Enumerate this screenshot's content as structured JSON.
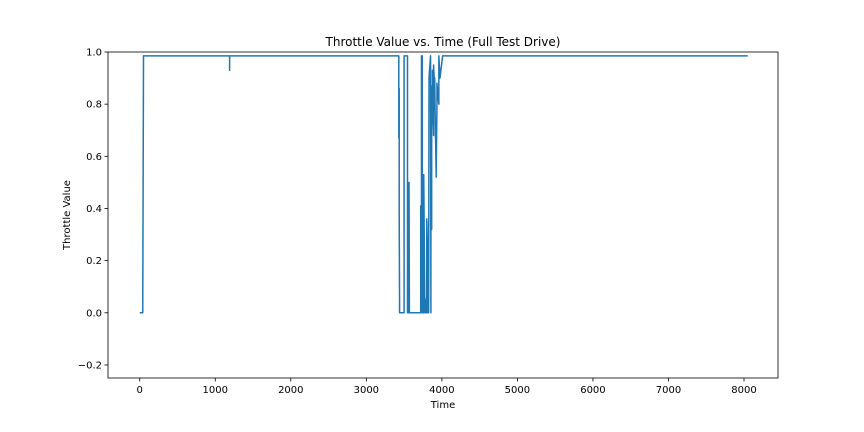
{
  "chart_data": {
    "type": "line",
    "title": "Throttle Value vs. Time (Full Test Drive)",
    "xlabel": "Time",
    "ylabel": "Throttle Value",
    "xlim": [
      -420,
      8450
    ],
    "ylim": [
      -0.25,
      1.0
    ],
    "xticks": [
      0,
      1000,
      2000,
      3000,
      4000,
      5000,
      6000,
      7000,
      8000
    ],
    "xtick_labels": [
      "0",
      "1000",
      "2000",
      "3000",
      "4000",
      "5000",
      "6000",
      "7000",
      "8000"
    ],
    "yticks": [
      -0.2,
      0.0,
      0.2,
      0.4,
      0.6,
      0.8,
      1.0
    ],
    "ytick_labels": [
      "−0.2",
      "0.0",
      "0.2",
      "0.4",
      "0.6",
      "0.8",
      "1.0"
    ],
    "grid": false,
    "color": "#1f77b4",
    "series": [
      {
        "x": [
          0,
          40,
          50,
          1190,
          1190,
          1190,
          1190,
          3430,
          3430,
          3435,
          3435,
          3440,
          3440,
          3445,
          3445,
          3500,
          3500,
          3545,
          3545,
          3555,
          3555,
          3565,
          3565,
          3570,
          3570,
          3580,
          3580,
          3590,
          3590,
          3600,
          3600,
          3720,
          3720,
          3730,
          3730,
          3740,
          3740,
          3745,
          3745,
          3755,
          3755,
          3760,
          3760,
          3775,
          3775,
          3785,
          3785,
          3800,
          3800,
          3810,
          3810,
          3825,
          3825,
          3830,
          3830,
          3850,
          3850,
          3855,
          3855,
          3865,
          3865,
          3875,
          3875,
          3890,
          3890,
          3905,
          3905,
          3915,
          3915,
          3925,
          3925,
          3935,
          3935,
          3960,
          3960,
          3975,
          4010,
          4020,
          4025,
          4030,
          4040,
          4045,
          4050,
          4055,
          4060,
          4065,
          4070,
          4080,
          4085,
          4090,
          4100,
          4110,
          4115,
          4120,
          4130,
          4135,
          4140,
          4145,
          4150,
          4160,
          4170,
          4180,
          4190,
          4200,
          4210,
          4220,
          4230,
          4240,
          4245,
          4250,
          4260,
          4270,
          4280,
          4290,
          4300,
          4305,
          4310,
          4320,
          4330,
          4340,
          4350,
          4360,
          4370,
          4380,
          4380,
          4385,
          4385,
          4445,
          4445,
          4460,
          4460,
          4475,
          4475,
          4490,
          4490,
          4520,
          4520,
          4550,
          4550,
          7800,
          7800,
          7810,
          7815,
          7820,
          7825,
          7830,
          7840,
          7850,
          7855,
          7860,
          7870,
          7875,
          7880,
          7885,
          7890,
          7895,
          7900,
          8050
        ],
        "y": [
          0,
          0,
          0.985,
          0.985,
          0.93,
          0.985,
          0.985,
          0.985,
          0.67,
          0.86,
          0.4,
          0.02,
          0,
          0,
          0,
          0,
          0.985,
          0.985,
          0,
          0,
          0.16,
          0,
          0.5,
          0.02,
          0,
          0,
          0,
          0,
          0,
          0,
          0,
          0,
          0.41,
          0.02,
          0.985,
          0.985,
          0,
          0.09,
          0,
          0.06,
          0,
          0,
          0.53,
          0,
          0.06,
          0,
          0.05,
          0,
          0.36,
          0,
          0,
          0.35,
          0,
          0.9,
          0.9,
          0.985,
          0.985,
          0,
          0.87,
          0.32,
          0.7,
          0.85,
          0.93,
          0.68,
          0.95,
          0.86,
          0.9,
          0.67,
          0.7,
          0.52,
          0.55,
          0.8,
          0.88,
          0.8,
          0.985,
          0.9,
          0.985,
          0.985,
          0.985,
          0.985,
          0.985,
          0.985,
          0.985,
          0.985,
          0.985,
          0.985,
          0.985,
          0.985,
          0.985,
          0.985,
          0.985,
          0.985,
          0.985,
          0.985,
          0.985,
          0.985,
          0.985,
          0.985,
          0.985,
          0.985,
          0.985,
          0.985,
          0.985,
          0.985,
          0.985,
          0.985,
          0.985,
          0.985,
          0.985,
          0.985,
          0.985,
          0.985,
          0.985,
          0.985,
          0.985,
          0.985,
          0.985,
          0.985,
          0.985,
          0.985,
          0.985,
          0.985,
          0.985,
          0.985,
          0.985,
          0.985,
          0.985,
          0.985,
          0.985,
          0.985,
          0.985,
          0.985,
          0.985,
          0.985,
          0.985,
          0.985,
          0.985,
          0.985,
          0.985,
          0.985,
          0.985,
          0.985,
          0.985,
          0.985,
          0.985,
          0.985,
          0.985,
          0.985,
          0.985,
          0.985,
          0.985,
          0.985,
          0.985,
          0.985,
          0.985,
          0.985,
          0.985,
          0.985
        ]
      }
    ]
  }
}
